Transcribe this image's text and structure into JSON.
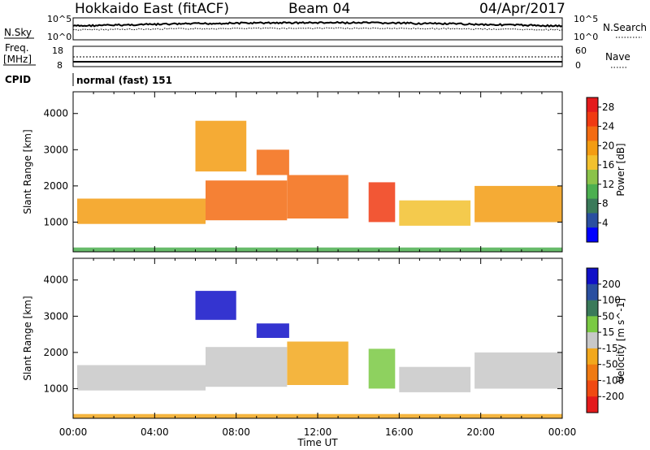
{
  "header": {
    "title": "Hokkaido East (fitACF)",
    "beam": "Beam 04",
    "date": "04/Apr/2017"
  },
  "strip": {
    "nsky_label": "N.Sky",
    "nsky_ticks": [
      "10^5",
      "10^0"
    ],
    "nsearch_label": "N.Search",
    "freq_label": "Freq.",
    "freq_unit": "[MHz]",
    "freq_ticks": [
      "18",
      "8"
    ],
    "nave_label": "Nave",
    "nave_ticks": [
      "60",
      "0"
    ],
    "cpid_label": "CPID",
    "cpid_value": "normal (fast) 151"
  },
  "chart_data": [
    {
      "type": "heatmap",
      "title": "",
      "xlabel": "Time UT",
      "ylabel": "Slant Range [km]",
      "xticks": [
        "00:00",
        "04:00",
        "08:00",
        "12:00",
        "16:00",
        "20:00",
        "00:00"
      ],
      "xlim": [
        0,
        24
      ],
      "yticks": [
        "1000",
        "2000",
        "3000",
        "4000"
      ],
      "ylim": [
        180,
        4600
      ],
      "colorbar": {
        "label": "Power [dB]",
        "ticks": [
          "4",
          "8",
          "12",
          "16",
          "20",
          "24",
          "28"
        ],
        "range": [
          0,
          30
        ],
        "colors": [
          "#0000ff",
          "#2a4fa0",
          "#3a7a5a",
          "#4caf50",
          "#8bc34a",
          "#f2c12e",
          "#f39c12",
          "#f36b12",
          "#f03a12",
          "#e41a1c"
        ]
      },
      "regions": [
        {
          "t": [
            0.2,
            6.5
          ],
          "r": [
            950,
            1650
          ],
          "level": 20
        },
        {
          "t": [
            6.5,
            10.5
          ],
          "r": [
            1050,
            2150
          ],
          "level": 22
        },
        {
          "t": [
            10.5,
            13.5
          ],
          "r": [
            1100,
            2300
          ],
          "level": 21
        },
        {
          "t": [
            14.5,
            15.8
          ],
          "r": [
            1000,
            2100
          ],
          "level": 24
        },
        {
          "t": [
            16.0,
            19.5
          ],
          "r": [
            900,
            1600
          ],
          "level": 17
        },
        {
          "t": [
            19.7,
            24.0
          ],
          "r": [
            1000,
            2000
          ],
          "level": 19
        },
        {
          "t": [
            6.0,
            8.5
          ],
          "r": [
            2400,
            3800
          ],
          "level": 20
        },
        {
          "t": [
            9.0,
            10.6
          ],
          "r": [
            2300,
            3000
          ],
          "level": 21
        },
        {
          "t": [
            0.0,
            24.0
          ],
          "r": [
            180,
            300
          ],
          "level": 10
        }
      ]
    },
    {
      "type": "heatmap",
      "title": "",
      "xlabel": "Time UT",
      "ylabel": "Slant Range [km]",
      "xticks": [
        "00:00",
        "04:00",
        "08:00",
        "12:00",
        "16:00",
        "20:00",
        "00:00"
      ],
      "xlim": [
        0,
        24
      ],
      "yticks": [
        "1000",
        "2000",
        "3000",
        "4000"
      ],
      "ylim": [
        180,
        4600
      ],
      "colorbar": {
        "label": "Velocity [m s^-1]",
        "ticks": [
          "200",
          "100",
          "50",
          "15",
          "-15",
          "-50",
          "-100",
          "-200"
        ],
        "range": [
          -250,
          250
        ],
        "colors": [
          "#1010c8",
          "#2a4fa0",
          "#3a7a5a",
          "#7ac943",
          "#c8c8c8",
          "#f2a81d",
          "#f07a12",
          "#f04a12",
          "#e41a1c"
        ]
      },
      "regions": [
        {
          "t": [
            0.2,
            6.5
          ],
          "r": [
            950,
            1650
          ],
          "level": 0
        },
        {
          "t": [
            6.5,
            10.5
          ],
          "r": [
            1050,
            2150
          ],
          "level": -10
        },
        {
          "t": [
            10.5,
            13.5
          ],
          "r": [
            1100,
            2300
          ],
          "level": -30
        },
        {
          "t": [
            14.5,
            15.8
          ],
          "r": [
            1000,
            2100
          ],
          "level": 30
        },
        {
          "t": [
            16.0,
            19.5
          ],
          "r": [
            900,
            1600
          ],
          "level": -5
        },
        {
          "t": [
            19.7,
            24.0
          ],
          "r": [
            1000,
            2000
          ],
          "level": 0
        },
        {
          "t": [
            6.0,
            8.0
          ],
          "r": [
            2900,
            3700
          ],
          "level": 200
        },
        {
          "t": [
            9.0,
            10.6
          ],
          "r": [
            2400,
            2800
          ],
          "level": 220
        },
        {
          "t": [
            0.0,
            24.0
          ],
          "r": [
            180,
            300
          ],
          "level": -60
        }
      ]
    }
  ]
}
